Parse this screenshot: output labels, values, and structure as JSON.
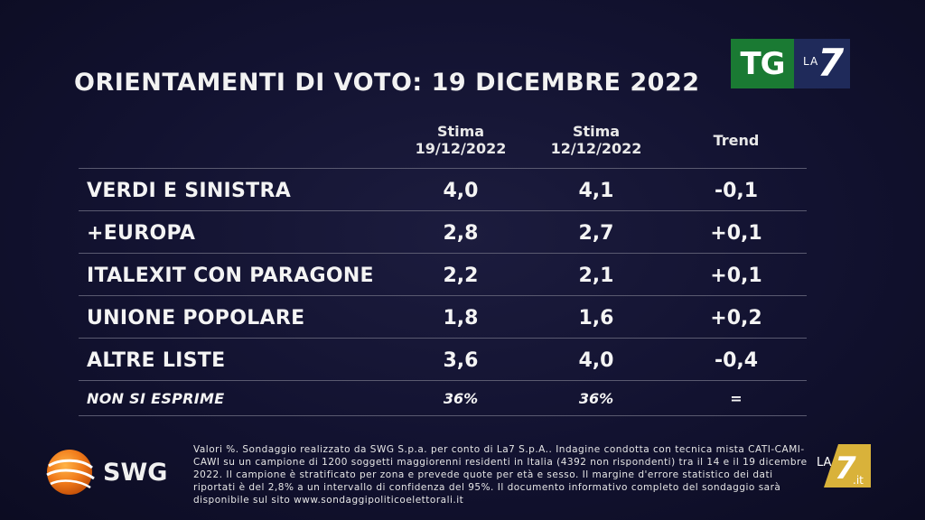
{
  "title": "ORIENTAMENTI DI VOTO: 19 DICEMBRE 2022",
  "broadcaster_logo": {
    "tg": "TG",
    "la": "LA",
    "seven": "7"
  },
  "columns": {
    "c1_line1": "Stima",
    "c1_line2": "19/12/2022",
    "c2_line1": "Stima",
    "c2_line2": "12/12/2022",
    "c3": "Trend"
  },
  "rows": [
    {
      "label": "VERDI E SINISTRA",
      "v1": "4,0",
      "v2": "4,1",
      "trend": "-0,1"
    },
    {
      "label": "+EUROPA",
      "v1": "2,8",
      "v2": "2,7",
      "trend": "+0,1"
    },
    {
      "label": "ITALEXIT CON PARAGONE",
      "v1": "2,2",
      "v2": "2,1",
      "trend": "+0,1"
    },
    {
      "label": "UNIONE POPOLARE",
      "v1": "1,8",
      "v2": "1,6",
      "trend": "+0,2"
    },
    {
      "label": "ALTRE LISTE",
      "v1": "3,6",
      "v2": "4,0",
      "trend": "-0,4"
    },
    {
      "label": "NON SI ESPRIME",
      "v1": "36%",
      "v2": "36%",
      "trend": "="
    }
  ],
  "pollster": "SWG",
  "footnote": "Valori %. Sondaggio realizzato da SWG S.p.a. per conto di La7 S.p.A.. Indagine condotta con tecnica mista CATI-CAMI-CAWI su un campione di 1200 soggetti maggiorenni residenti in Italia (4392 non rispondenti) tra il 14 e il 19 dicembre 2022. Il campione è stratificato per zona e prevede quote per età e sesso. Il margine d'errore statistico dei dati riportati è del 2,8% a un intervallo di confidenza del 95%. Il documento informativo completo del sondaggio sarà disponibile sul sito www.sondaggipoliticoelettorali.it",
  "corner_logo": {
    "la": "LA",
    "seven": "7",
    "it": ".it"
  },
  "colors": {
    "background": "#10102a",
    "tg_green": "#1a7a33",
    "la7_blue": "#1f2a5a",
    "swg_orange": "#f07a1a",
    "corner_gold": "#d9b23a"
  }
}
